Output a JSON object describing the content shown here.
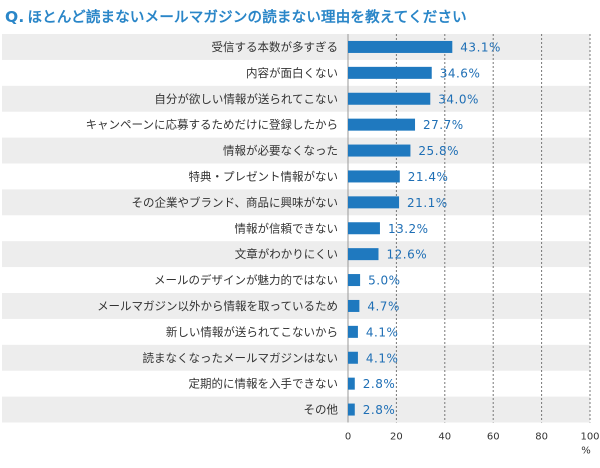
{
  "header": {
    "q_prefix": "Q.",
    "title": "ほとんど読まないメールマガジンの読まない理由を教えてください"
  },
  "chart_data": {
    "type": "bar",
    "orientation": "horizontal",
    "categories": [
      "受信する本数が多すぎる",
      "内容が面白くない",
      "自分が欲しい情報が送られてこない",
      "キャンペーンに応募するためだけに登録したから",
      "情報が必要なくなった",
      "特典・プレゼント情報がない",
      "その企業やブランド、商品に興味がない",
      "情報が信頼できない",
      "文章がわかりにくい",
      "メールのデザインが魅力的ではない",
      "メールマガジン以外から情報を取っているため",
      "新しい情報が送られてこないから",
      "読まなくなったメールマガジンはない",
      "定期的に情報を入手できない",
      "その他"
    ],
    "values": [
      43.1,
      34.6,
      34.0,
      27.7,
      25.8,
      21.4,
      21.1,
      13.2,
      12.6,
      5.0,
      4.7,
      4.1,
      4.1,
      2.8,
      2.8
    ],
    "value_labels": [
      "43.1%",
      "34.6%",
      "34.0%",
      "27.7%",
      "25.8%",
      "21.4%",
      "21.1%",
      "13.2%",
      "12.6%",
      "5.0%",
      "4.7%",
      "4.1%",
      "4.1%",
      "2.8%",
      "2.8%"
    ],
    "xlim": [
      0,
      100
    ],
    "xticks": [
      "0",
      "20",
      "40",
      "60",
      "80",
      "100"
    ],
    "xunit": "%",
    "grid": "vertical dotted",
    "bar_color": "#1f79bf",
    "label_color": "#1f6fb5",
    "stripe_color": "#ededed"
  }
}
